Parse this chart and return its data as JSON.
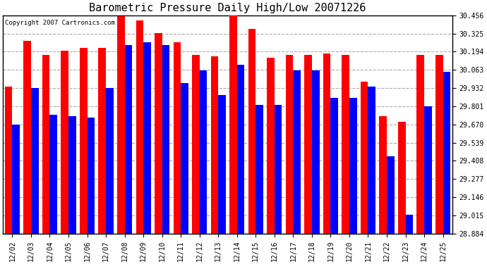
{
  "title": "Barometric Pressure Daily High/Low 20071226",
  "copyright": "Copyright 2007 Cartronics.com",
  "dates": [
    "12/02",
    "12/03",
    "12/04",
    "12/05",
    "12/06",
    "12/07",
    "12/08",
    "12/09",
    "12/10",
    "12/11",
    "12/12",
    "12/13",
    "12/14",
    "12/15",
    "12/16",
    "12/17",
    "12/18",
    "12/19",
    "12/20",
    "12/21",
    "12/22",
    "12/23",
    "12/24",
    "12/25"
  ],
  "highs": [
    29.94,
    30.27,
    30.17,
    30.2,
    30.22,
    30.22,
    30.45,
    30.42,
    30.33,
    30.26,
    30.17,
    30.16,
    30.46,
    30.36,
    30.15,
    30.17,
    30.17,
    30.18,
    30.17,
    29.98,
    29.73,
    29.69,
    30.17,
    30.17
  ],
  "lows": [
    29.67,
    29.93,
    29.74,
    29.73,
    29.72,
    29.93,
    30.24,
    30.26,
    30.24,
    29.97,
    30.06,
    29.88,
    30.1,
    29.81,
    29.81,
    30.06,
    30.06,
    29.86,
    29.86,
    29.94,
    29.44,
    29.02,
    29.8,
    30.05
  ],
  "y_ticks": [
    28.884,
    29.015,
    29.146,
    29.277,
    29.408,
    29.539,
    29.67,
    29.801,
    29.932,
    30.063,
    30.194,
    30.325,
    30.456
  ],
  "y_min": 28.884,
  "y_max": 30.456,
  "bar_width": 0.4,
  "high_color": "#ff0000",
  "low_color": "#0000ff",
  "bg_color": "#ffffff",
  "plot_bg_color": "#ffffff",
  "grid_color": "#aaaaaa",
  "title_fontsize": 11,
  "tick_fontsize": 7,
  "copyright_fontsize": 6.5
}
